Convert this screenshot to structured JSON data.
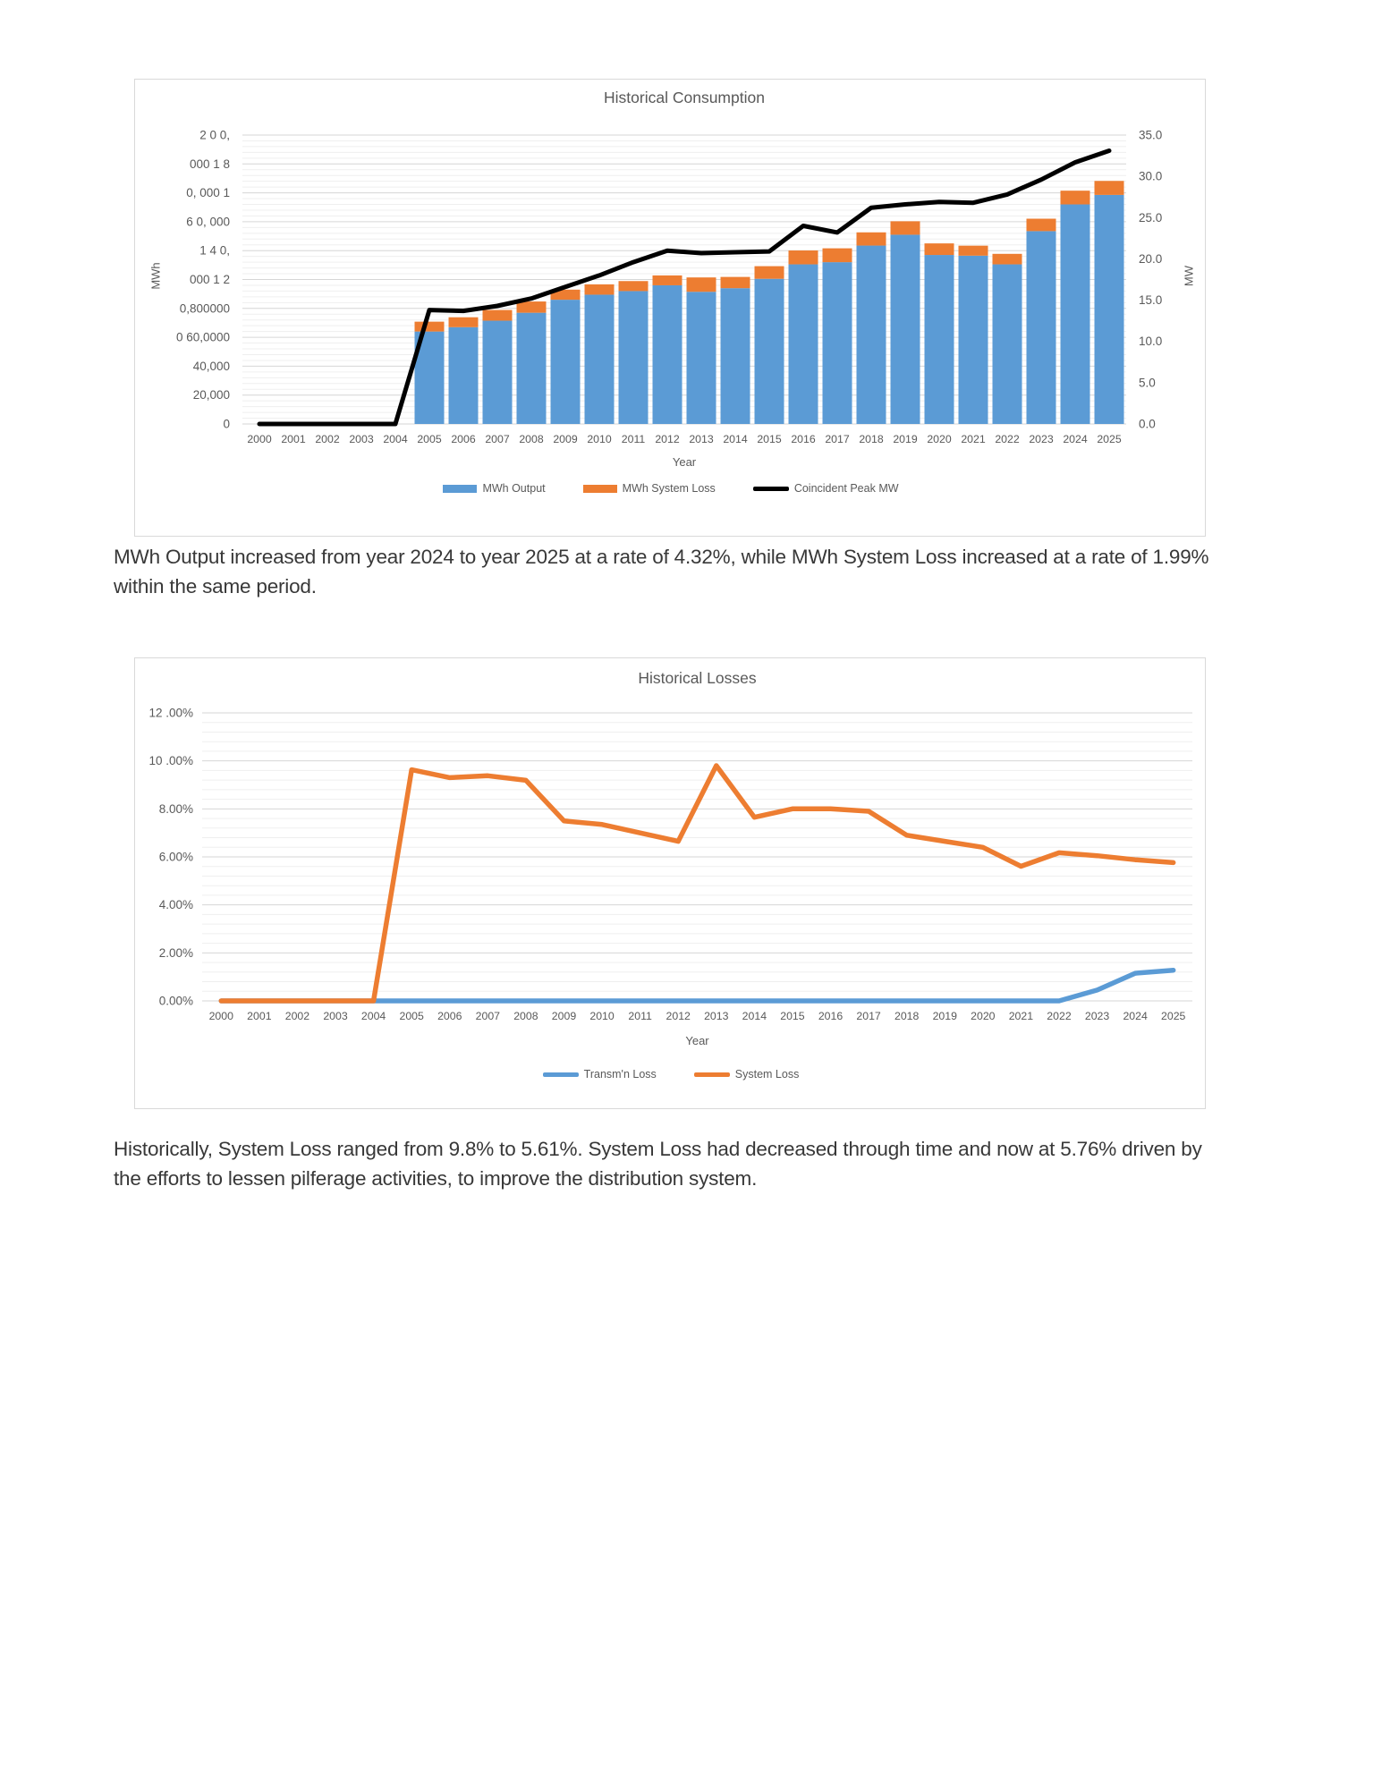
{
  "colors": {
    "output_blue": "#5B9BD5",
    "loss_orange": "#ED7D31",
    "peak_black": "#000000",
    "grid_major": "#d6d6d6",
    "grid_minor": "#efefef",
    "axis_text": "#595959",
    "body_text": "#383838",
    "chart_border": "#d9d9d9"
  },
  "text_blocks": {
    "consumption_note": "MWh Output increased from year 2024 to year 2025 at a rate of 4.32%, while MWh System Loss increased at a rate of 1.99% within the same period.",
    "losses_note": "Historically, System Loss ranged from 9.8% to 5.61%. System Loss had decreased through time and now at 5.76% driven by the efforts to lessen pilferage activities, to improve the distribution system."
  },
  "chart_data": [
    {
      "type": "bar",
      "subtype": "stacked-bar-with-line",
      "title": "Historical Consumption",
      "xlabel": "Year",
      "ylabel_left": "MWh",
      "ylabel_right": "MW",
      "categories": [
        "2000",
        "2001",
        "2002",
        "2003",
        "2004",
        "2005",
        "2006",
        "2007",
        "2008",
        "2009",
        "2010",
        "2011",
        "2012",
        "2013",
        "2014",
        "2015",
        "2016",
        "2017",
        "2018",
        "2019",
        "2020",
        "2021",
        "2022",
        "2023",
        "2024",
        "2025"
      ],
      "series": [
        {
          "name": "MWh Output",
          "kind": "bar",
          "axis": "left",
          "color": "#5B9BD5",
          "values": [
            0,
            0,
            0,
            0,
            0,
            64000,
            67000,
            71500,
            77000,
            86000,
            89500,
            92000,
            96000,
            91500,
            94000,
            100500,
            110500,
            112000,
            123500,
            131000,
            117000,
            116500,
            110500,
            133500,
            152000,
            158570
          ]
        },
        {
          "name": "MWh System Loss",
          "kind": "bar",
          "axis": "left",
          "color": "#ED7D31",
          "values": [
            0,
            0,
            0,
            0,
            0,
            6820,
            6870,
            7400,
            7790,
            6980,
            7150,
            6925,
            6840,
            9940,
            7790,
            8740,
            9610,
            9600,
            9150,
            9330,
            8000,
            6925,
            7270,
            8600,
            9501,
            9690
          ]
        },
        {
          "name": "Coincident Peak MW",
          "kind": "line",
          "axis": "right",
          "color": "#000000",
          "values": [
            0,
            0,
            0,
            0,
            0,
            13.8,
            13.7,
            14.3,
            15.2,
            16.6,
            18.0,
            19.6,
            21.0,
            20.7,
            20.8,
            20.9,
            24.0,
            23.2,
            26.2,
            26.6,
            26.9,
            26.8,
            27.8,
            29.6,
            31.7,
            33.1
          ]
        }
      ],
      "left_axis": {
        "min": 0,
        "max": 200000,
        "major": 20000,
        "minor": 4000,
        "tick_labels": [
          "2  0  0,",
          "000  1  8",
          "0,  000  1",
          "6  0,  000",
          "1   4   0,",
          "000  1  2",
          "0,800000",
          "0 60,0000",
          "40,000",
          "20,000",
          "0"
        ]
      },
      "right_axis": {
        "min": 0,
        "max": 35,
        "major": 5,
        "tick_labels": [
          "35.0",
          "30.0",
          "25.0",
          "20.0",
          "15.0",
          "10.0",
          "5.0",
          "0.0"
        ]
      },
      "legend": [
        "MWh Output",
        "MWh System Loss",
        "Coincident Peak MW"
      ],
      "grid": true,
      "legend_position": "bottom"
    },
    {
      "type": "line",
      "title": "Historical Losses",
      "xlabel": "Year",
      "categories": [
        "2000",
        "2001",
        "2002",
        "2003",
        "2004",
        "2005",
        "2006",
        "2007",
        "2008",
        "2009",
        "2010",
        "2011",
        "2012",
        "2013",
        "2014",
        "2015",
        "2016",
        "2017",
        "2018",
        "2019",
        "2020",
        "2021",
        "2022",
        "2023",
        "2024",
        "2025"
      ],
      "series": [
        {
          "name": "Transm'n Loss",
          "kind": "line",
          "color": "#5B9BD5",
          "unit": "percent",
          "values": [
            0,
            0,
            0,
            0,
            0,
            0,
            0,
            0,
            0,
            0,
            0,
            0,
            0,
            0,
            0,
            0,
            0,
            0,
            0,
            0,
            0,
            0,
            0,
            0.45,
            1.15,
            1.28
          ]
        },
        {
          "name": "System Loss",
          "kind": "line",
          "color": "#ED7D31",
          "unit": "percent",
          "values": [
            0,
            0,
            0,
            0,
            0,
            9.63,
            9.3,
            9.38,
            9.19,
            7.5,
            7.35,
            7.0,
            6.65,
            9.8,
            7.65,
            8.0,
            8.0,
            7.9,
            6.9,
            6.65,
            6.4,
            5.61,
            6.17,
            6.05,
            5.88,
            5.76
          ]
        }
      ],
      "y_axis": {
        "min": 0,
        "max": 12,
        "major": 2,
        "minor": 0.4,
        "tick_labels": [
          "12 .00%",
          "10 .00%",
          "8.00%",
          "6.00%",
          "4.00%",
          "2.00%",
          "0.00%"
        ]
      },
      "legend": [
        "Transm'n Loss",
        "System Loss"
      ],
      "grid": true,
      "legend_position": "bottom"
    }
  ]
}
